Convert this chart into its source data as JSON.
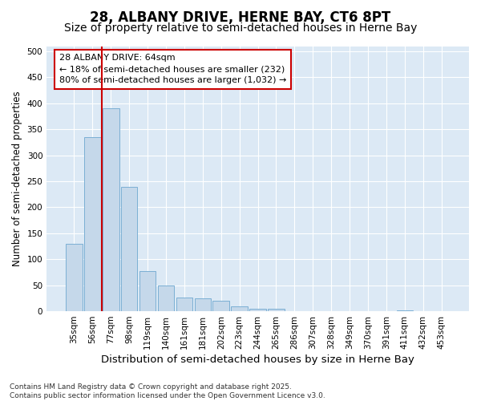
{
  "title1": "28, ALBANY DRIVE, HERNE BAY, CT6 8PT",
  "title2": "Size of property relative to semi-detached houses in Herne Bay",
  "xlabel": "Distribution of semi-detached houses by size in Herne Bay",
  "ylabel": "Number of semi-detached properties",
  "categories": [
    "35sqm",
    "56sqm",
    "77sqm",
    "98sqm",
    "119sqm",
    "140sqm",
    "161sqm",
    "181sqm",
    "202sqm",
    "223sqm",
    "244sqm",
    "265sqm",
    "286sqm",
    "307sqm",
    "328sqm",
    "349sqm",
    "370sqm",
    "391sqm",
    "411sqm",
    "432sqm",
    "453sqm"
  ],
  "values": [
    130,
    335,
    390,
    240,
    78,
    50,
    27,
    25,
    20,
    10,
    5,
    5,
    0,
    0,
    0,
    0,
    0,
    0,
    2,
    0,
    0
  ],
  "bar_color": "#c5d8ea",
  "bar_edge_color": "#7bafd4",
  "vline_color": "#cc0000",
  "vline_x_index": 1.5,
  "annotation_text": "28 ALBANY DRIVE: 64sqm\n← 18% of semi-detached houses are smaller (232)\n80% of semi-detached houses are larger (1,032) →",
  "annotation_box_edgecolor": "#cc0000",
  "background_color": "#ffffff",
  "plot_bg_color": "#dce9f5",
  "grid_color": "#ffffff",
  "footer_text": "Contains HM Land Registry data © Crown copyright and database right 2025.\nContains public sector information licensed under the Open Government Licence v3.0.",
  "ylim": [
    0,
    510
  ],
  "yticks": [
    0,
    50,
    100,
    150,
    200,
    250,
    300,
    350,
    400,
    450,
    500
  ],
  "title1_fontsize": 12,
  "title2_fontsize": 10,
  "xlabel_fontsize": 9.5,
  "ylabel_fontsize": 8.5,
  "tick_fontsize": 7.5,
  "footer_fontsize": 6.5,
  "annotation_fontsize": 8
}
